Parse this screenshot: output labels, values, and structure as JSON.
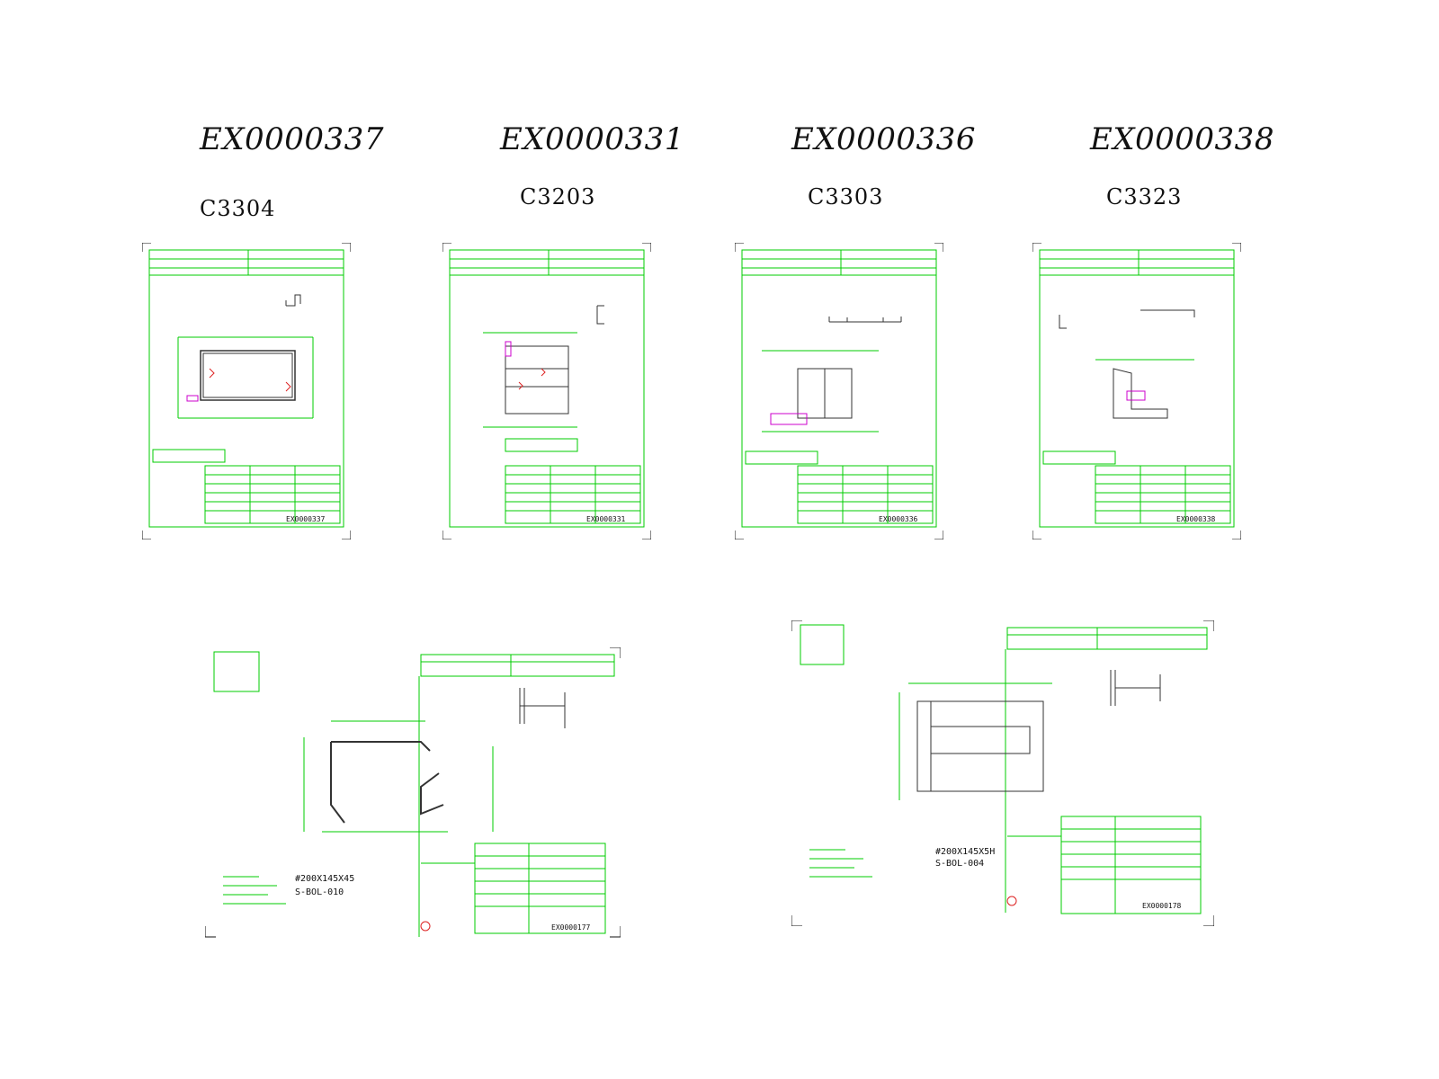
{
  "top_drawings": [
    {
      "id": "EX0000337",
      "code": "C3304",
      "sheet_no": "EX0000337"
    },
    {
      "id": "EX0000331",
      "code": "C3203",
      "sheet_no": "EX0000331"
    },
    {
      "id": "EX0000336",
      "code": "C3303",
      "sheet_no": "EX0000336"
    },
    {
      "id": "EX0000338",
      "code": "C3323",
      "sheet_no": "EX0000338"
    }
  ],
  "bottom_drawings": [
    {
      "part": "#200X145X45",
      "ref": "S-BOL-010",
      "sheet_no": "EX0000177"
    },
    {
      "part": "#200X145X5H",
      "ref": "S-BOL-004",
      "sheet_no": "EX0000178"
    }
  ],
  "colors": {
    "cad_green": "#00cc00",
    "profile": "#333333",
    "highlight": "#cc00cc",
    "red": "#dd2222"
  }
}
